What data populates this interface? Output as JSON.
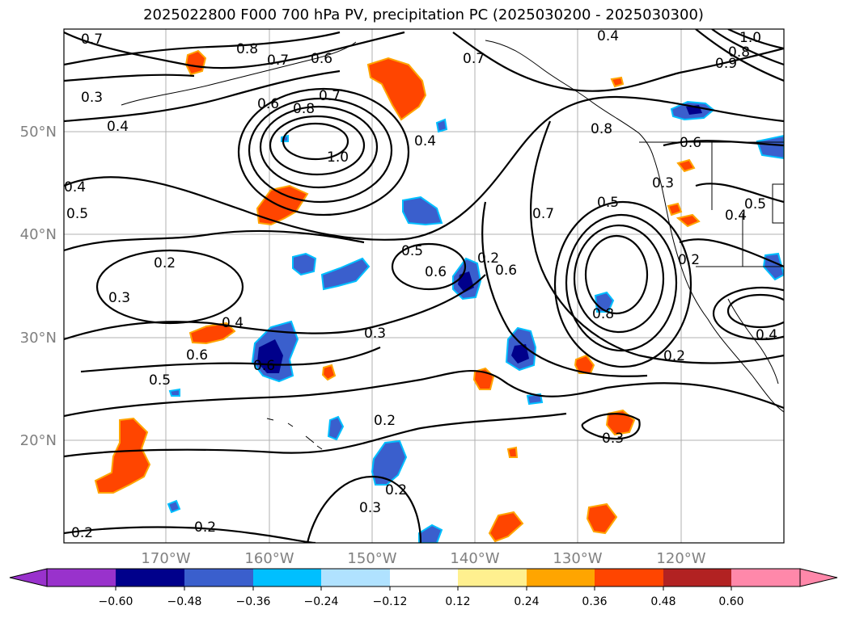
{
  "title": "2025022800 F000 700 hPa PV, precipitation PC (2025030200 - 2025030300)",
  "lat_labels": [
    "50°N",
    "40°N",
    "30°N",
    "20°N"
  ],
  "lon_labels": [
    "170°W",
    "160°W",
    "150°W",
    "140°W",
    "130°W",
    "120°W"
  ],
  "contour_labels": [
    "0.7",
    "0.8",
    "0.7",
    "0.6",
    "0.7",
    "0.4",
    "0.3",
    "0.4",
    "0.6",
    "0.8",
    "0.7",
    "1.0",
    "0.4",
    "0.4",
    "0.5",
    "0.2",
    "0.3",
    "0.4",
    "0.6",
    "0.5",
    "0.6",
    "0.5",
    "0.6",
    "0.3",
    "0.2",
    "0.7",
    "0.5",
    "0.6",
    "0.8",
    "0.2",
    "0.3",
    "0.8",
    "0.6",
    "0.5",
    "0.4",
    "0.2",
    "0.4",
    "0.3",
    "0.2",
    "0.3",
    "0.2",
    "0.2",
    "0.2",
    "1.0",
    "0.8",
    "0.9"
  ],
  "colorbar": {
    "colors": [
      "#9932cc",
      "#00008b",
      "#3a5fcd",
      "#00bfff",
      "#b0e2ff",
      "#ffffff",
      "#fff08f",
      "#ffa500",
      "#ff4500",
      "#b22222",
      "#ff88aa"
    ],
    "ticks": [
      "−0.60",
      "−0.48",
      "−0.36",
      "−0.24",
      "−0.12",
      "0.12",
      "0.24",
      "0.36",
      "0.48",
      "0.60"
    ]
  }
}
